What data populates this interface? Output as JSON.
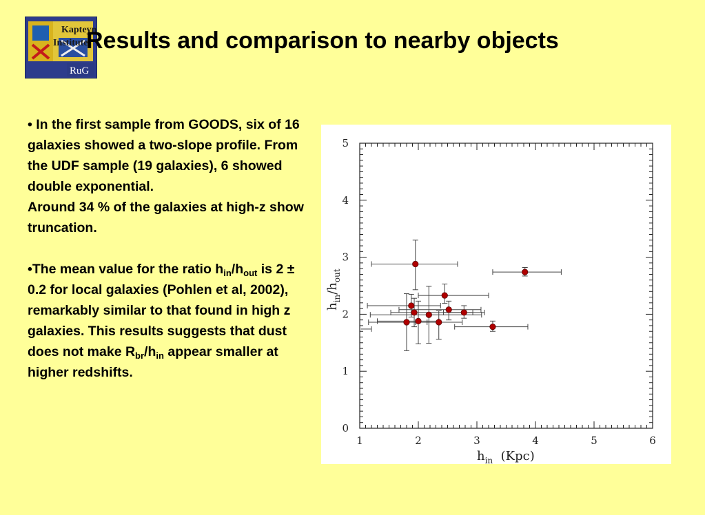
{
  "header": {
    "title": "Results and comparison to nearby objects",
    "logo": {
      "top_text": "Kapteyn",
      "mid_text": "Institute",
      "bottom_text": "RuG"
    }
  },
  "bullets": [
    {
      "bullet": "•",
      "paragraph1": " In the first sample from GOODS, six of 16 galaxies showed a two-slope profile. From the UDF sample (19 galaxies), 6 showed double exponential.",
      "paragraph2": "Around 34 % of the galaxies at high-z show truncation."
    },
    {
      "bullet": "•",
      "part1": "The mean value for the ratio h",
      "sub1": "in",
      "part2": "/h",
      "sub2": "out",
      "part3": " is 2 ± 0.2 for local galaxies (Pohlen et al, 2002), remarkably similar to that found in high z galaxies. This results suggests that dust does not make R",
      "sub3": "br",
      "part4": "/h",
      "sub4": "in",
      "part5": " appear smaller at higher redshifts."
    }
  ],
  "chart_data": {
    "type": "scatter",
    "xlabel": {
      "main": "h",
      "sub": "in",
      "rest": "  (Kpc)"
    },
    "ylabel": {
      "main": "h",
      "sub1": "in",
      "mid": "/h",
      "sub2": "out"
    },
    "xlim": [
      1,
      6
    ],
    "ylim": [
      0,
      5
    ],
    "xticks": [
      1,
      2,
      3,
      4,
      5,
      6
    ],
    "yticks": [
      0,
      1,
      2,
      3,
      4,
      5
    ],
    "marker_color": "#b00000",
    "points": [
      {
        "x": 1.95,
        "y": 2.88,
        "xerr": [
          0.75,
          0.72
        ],
        "yerr": [
          0.45,
          0.42
        ]
      },
      {
        "x": 3.82,
        "y": 2.74,
        "xerr": [
          0.55,
          0.62
        ],
        "yerr": [
          0.07,
          0.08
        ]
      },
      {
        "x": 2.45,
        "y": 2.33,
        "xerr": [
          0.45,
          0.75
        ],
        "yerr": [
          0.14,
          0.2
        ]
      },
      {
        "x": 1.88,
        "y": 2.15,
        "xerr": [
          0.75,
          0.5
        ],
        "yerr": [
          0.2,
          0.2
        ]
      },
      {
        "x": 2.52,
        "y": 2.08,
        "xerr": [
          0.85,
          0.55
        ],
        "yerr": [
          0.18,
          0.15
        ]
      },
      {
        "x": 1.93,
        "y": 2.03,
        "xerr": [
          0.4,
          1.0
        ],
        "yerr": [
          0.25,
          0.25
        ]
      },
      {
        "x": 2.78,
        "y": 2.03,
        "xerr": [
          0.35,
          0.35
        ],
        "yerr": [
          0.1,
          0.12
        ]
      },
      {
        "x": 2.18,
        "y": 1.99,
        "xerr": [
          1.0,
          0.9
        ],
        "yerr": [
          0.5,
          0.5
        ]
      },
      {
        "x": 2.0,
        "y": 1.88,
        "xerr": [
          0.7,
          0.35
        ],
        "yerr": [
          0.4,
          0.35
        ]
      },
      {
        "x": 1.8,
        "y": 1.86,
        "xerr": [
          0.65,
          0.35
        ],
        "yerr": [
          0.5,
          0.5
        ]
      },
      {
        "x": 2.35,
        "y": 1.86,
        "xerr": [
          0.4,
          0.4
        ],
        "yerr": [
          0.3,
          0.2
        ]
      },
      {
        "x": 3.27,
        "y": 1.78,
        "xerr": [
          0.65,
          0.6
        ],
        "yerr": [
          0.08,
          0.1
        ]
      }
    ],
    "extra_segments": [
      {
        "x1": 1.02,
        "x2": 1.2,
        "y": 1.74
      }
    ]
  }
}
